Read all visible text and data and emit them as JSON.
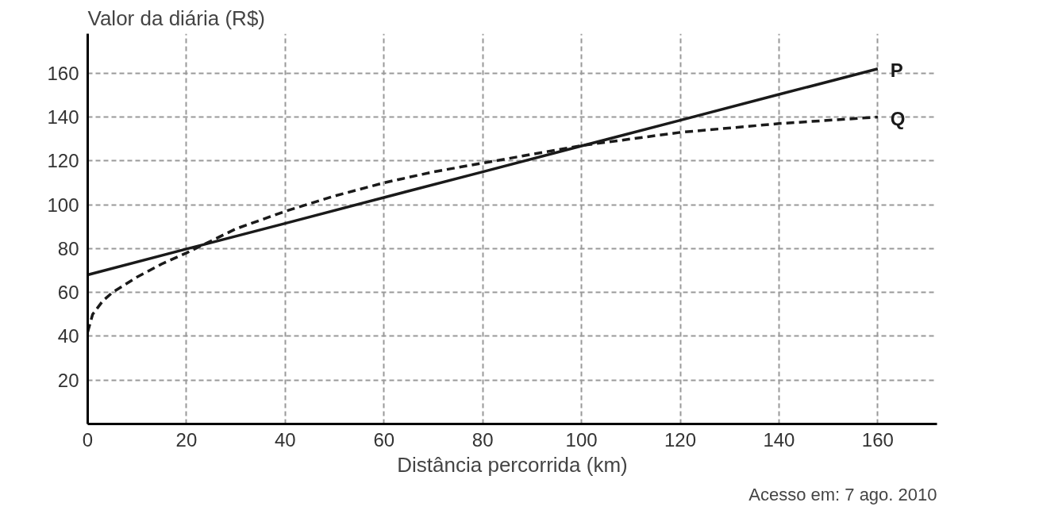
{
  "chart_data": {
    "type": "line",
    "ylabel": "Valor da diária (R$)",
    "xlabel": "Distância percorrida (km)",
    "x": [
      0,
      20,
      40,
      60,
      80,
      100,
      120,
      140,
      160
    ],
    "series": [
      {
        "name": "P",
        "color": "#1a1a1a",
        "line_style": "solid",
        "values": [
          68,
          79.8,
          91.5,
          103.3,
          115,
          126.8,
          138.5,
          150.3,
          162
        ]
      },
      {
        "name": "Q",
        "color": "#1a1a1a",
        "line_style": "dashed",
        "x": [
          0,
          1,
          3,
          5,
          10,
          15,
          20,
          30,
          40,
          50,
          60,
          70,
          80,
          90,
          100,
          120,
          140,
          160
        ],
        "values": [
          42,
          50,
          56,
          60,
          67,
          73,
          78,
          89,
          97,
          104,
          110,
          115,
          119,
          123,
          127,
          133,
          137,
          140
        ]
      }
    ],
    "xlim": [
      0,
      172
    ],
    "ylim": [
      0,
      178
    ],
    "xticks": [
      0,
      20,
      40,
      60,
      80,
      100,
      120,
      140,
      160
    ],
    "yticks": [
      20,
      40,
      60,
      80,
      100,
      120,
      140,
      160
    ],
    "grid": true,
    "marker": "none",
    "annotations": [
      "Acesso em: 7 ago. 2010"
    ]
  }
}
